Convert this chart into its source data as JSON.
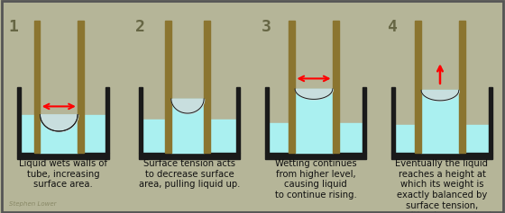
{
  "bg_color": "#b5b598",
  "beaker_wall_color": "#1a1a1a",
  "tube_color": "#8B7530",
  "liquid_color": "#aaf0f0",
  "meniscus_bg_color": "#c8dede",
  "panel_texts": [
    "1",
    "2",
    "3",
    "4"
  ],
  "number_color": "#666644",
  "captions": [
    "Liquid wets walls of\ntube, increasing\nsurface area.",
    "Surface tension acts\nto decrease surface\narea, pulling liquid up.",
    "Wetting continues\nfrom higher level,\ncausing liquid\nto continue rising.",
    "Eventually the liquid\nreaches a height at\nwhich its weight is\nexactly balanced by\nsurface tension,\nresulting in a constant\nheight."
  ],
  "caption_fontsize": 7.2,
  "number_fontsize": 13,
  "watermark": "Stephen Lower",
  "watermark_color": "#888866",
  "border_color": "#555555"
}
